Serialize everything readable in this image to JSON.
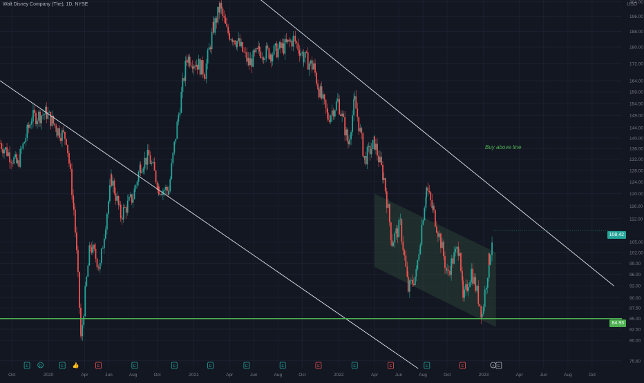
{
  "header": {
    "title": "Walt Disney Company (The), 1D, NYSE",
    "currency": "USD"
  },
  "colors": {
    "background": "#131722",
    "up": "#26a69a",
    "down": "#ef5350",
    "trendline": "#d1d4dc",
    "support": "#4caf50",
    "channel_fill": "#2e4a3a",
    "axis_text": "#787b86"
  },
  "annotation": "Buy above line",
  "price_labels": {
    "last": "108.42",
    "support": "84.93"
  },
  "chart_data": {
    "type": "candlestick",
    "title": "Walt Disney Company (The), 1D, NYSE",
    "xlabel": "",
    "ylabel": "",
    "scale": "log",
    "xlim": [
      "2019-09-01",
      "2023-12-15"
    ],
    "ylim": [
      74.0,
      205.0
    ],
    "y_ticks": [
      "75.60",
      "80.00",
      "82.50",
      "85.00",
      "87.50",
      "90.00",
      "93.00",
      "96.00",
      "99.00",
      "102.00",
      "105.00",
      "112.00",
      "116.00",
      "120.00",
      "124.00",
      "128.00",
      "132.00",
      "136.00",
      "140.00",
      "144.00",
      "149.00",
      "154.00",
      "159.00",
      "164.00",
      "172.00",
      "180.00",
      "188.00",
      "196.00",
      "204.00"
    ],
    "x_ticks": [
      {
        "label": "Oct",
        "date": "2019-10-01"
      },
      {
        "label": "2020",
        "date": "2020-01-01"
      },
      {
        "label": "Apr",
        "date": "2020-04-01"
      },
      {
        "label": "Jun",
        "date": "2020-06-01"
      },
      {
        "label": "Aug",
        "date": "2020-08-01"
      },
      {
        "label": "Oct",
        "date": "2020-10-01"
      },
      {
        "label": "2021",
        "date": "2021-01-01"
      },
      {
        "label": "Apr",
        "date": "2021-04-01"
      },
      {
        "label": "Jun",
        "date": "2021-06-01"
      },
      {
        "label": "Aug",
        "date": "2021-08-01"
      },
      {
        "label": "Oct",
        "date": "2021-10-01"
      },
      {
        "label": "2022",
        "date": "2022-01-01"
      },
      {
        "label": "Apr",
        "date": "2022-04-01"
      },
      {
        "label": "Jun",
        "date": "2022-06-01"
      },
      {
        "label": "Aug",
        "date": "2022-08-01"
      },
      {
        "label": "Oct",
        "date": "2022-10-01"
      },
      {
        "label": "2023",
        "date": "2023-01-01"
      },
      {
        "label": "Apr",
        "date": "2023-04-01"
      },
      {
        "label": "Jun",
        "date": "2023-06-01"
      },
      {
        "label": "Aug",
        "date": "2023-08-01"
      },
      {
        "label": "Oct",
        "date": "2023-10-01"
      }
    ],
    "price_path": [
      {
        "date": "2019-09-01",
        "close": 138
      },
      {
        "date": "2019-10-15",
        "close": 130
      },
      {
        "date": "2019-11-20",
        "close": 148
      },
      {
        "date": "2019-12-27",
        "close": 150
      },
      {
        "date": "2020-01-25",
        "close": 143
      },
      {
        "date": "2020-02-15",
        "close": 140
      },
      {
        "date": "2020-03-05",
        "close": 115
      },
      {
        "date": "2020-03-23",
        "close": 80
      },
      {
        "date": "2020-04-15",
        "close": 104
      },
      {
        "date": "2020-05-10",
        "close": 98
      },
      {
        "date": "2020-06-08",
        "close": 125
      },
      {
        "date": "2020-07-01",
        "close": 113
      },
      {
        "date": "2020-08-01",
        "close": 119
      },
      {
        "date": "2020-08-20",
        "close": 130
      },
      {
        "date": "2020-09-10",
        "close": 133
      },
      {
        "date": "2020-10-05",
        "close": 122
      },
      {
        "date": "2020-10-30",
        "close": 121
      },
      {
        "date": "2020-11-20",
        "close": 145
      },
      {
        "date": "2020-12-15",
        "close": 175
      },
      {
        "date": "2021-01-10",
        "close": 172
      },
      {
        "date": "2021-01-29",
        "close": 168
      },
      {
        "date": "2021-02-20",
        "close": 190
      },
      {
        "date": "2021-03-08",
        "close": 201
      },
      {
        "date": "2021-03-25",
        "close": 188
      },
      {
        "date": "2021-04-20",
        "close": 183
      },
      {
        "date": "2021-05-20",
        "close": 172
      },
      {
        "date": "2021-06-15",
        "close": 178
      },
      {
        "date": "2021-07-15",
        "close": 177
      },
      {
        "date": "2021-08-15",
        "close": 180
      },
      {
        "date": "2021-09-10",
        "close": 184
      },
      {
        "date": "2021-10-05",
        "close": 175
      },
      {
        "date": "2021-10-30",
        "close": 170
      },
      {
        "date": "2021-11-12",
        "close": 160
      },
      {
        "date": "2021-12-05",
        "close": 148
      },
      {
        "date": "2021-12-30",
        "close": 155
      },
      {
        "date": "2022-01-25",
        "close": 138
      },
      {
        "date": "2022-02-10",
        "close": 155
      },
      {
        "date": "2022-03-07",
        "close": 132
      },
      {
        "date": "2022-04-01",
        "close": 138
      },
      {
        "date": "2022-04-25",
        "close": 125
      },
      {
        "date": "2022-05-15",
        "close": 105
      },
      {
        "date": "2022-06-05",
        "close": 110
      },
      {
        "date": "2022-06-25",
        "close": 92
      },
      {
        "date": "2022-07-15",
        "close": 96
      },
      {
        "date": "2022-08-10",
        "close": 122
      },
      {
        "date": "2022-08-25",
        "close": 115
      },
      {
        "date": "2022-09-15",
        "close": 105
      },
      {
        "date": "2022-10-01",
        "close": 96
      },
      {
        "date": "2022-10-15",
        "close": 100
      },
      {
        "date": "2022-11-01",
        "close": 104
      },
      {
        "date": "2022-11-10",
        "close": 89
      },
      {
        "date": "2022-12-01",
        "close": 97
      },
      {
        "date": "2022-12-28",
        "close": 86
      },
      {
        "date": "2023-01-15",
        "close": 100
      },
      {
        "date": "2023-01-25",
        "close": 108.42
      }
    ],
    "trendlines": [
      {
        "name": "lower-falling-trendline",
        "start": {
          "date": "2019-09-01",
          "price": 164
        },
        "end": {
          "date": "2022-07-20",
          "price": 74
        }
      },
      {
        "name": "upper-falling-trendline",
        "start": {
          "date": "2020-09-25",
          "price": 260
        },
        "end": {
          "date": "2023-11-25",
          "price": 93
        }
      }
    ],
    "channel": {
      "start_date": "2022-04-01",
      "end_date": "2023-02-01",
      "upper_start": 120,
      "lower_start": 98,
      "upper_end": 102,
      "lower_end": 83
    },
    "support_level": 84.93,
    "last_price": 108.42,
    "event_markers": [
      {
        "date": "2019-11-08",
        "label": "E",
        "kind": "earnings"
      },
      {
        "date": "2019-12-12",
        "label": "D",
        "kind": "dividend"
      },
      {
        "date": "2020-02-05",
        "label": "E",
        "kind": "earnings"
      },
      {
        "date": "2020-03-10",
        "label": "👍",
        "kind": "idea"
      },
      {
        "date": "2020-05-06",
        "label": "E",
        "kind": "earnings-down"
      },
      {
        "date": "2020-08-05",
        "label": "E",
        "kind": "earnings"
      },
      {
        "date": "2020-11-13",
        "label": "E",
        "kind": "earnings"
      },
      {
        "date": "2021-02-12",
        "label": "E",
        "kind": "earnings"
      },
      {
        "date": "2021-05-14",
        "label": "E",
        "kind": "earnings"
      },
      {
        "date": "2021-08-13",
        "label": "E",
        "kind": "earnings"
      },
      {
        "date": "2021-11-11",
        "label": "E",
        "kind": "earnings-down"
      },
      {
        "date": "2022-02-10",
        "label": "E",
        "kind": "earnings"
      },
      {
        "date": "2022-05-12",
        "label": "E",
        "kind": "earnings-down"
      },
      {
        "date": "2022-08-11",
        "label": "E",
        "kind": "earnings"
      },
      {
        "date": "2022-11-09",
        "label": "E",
        "kind": "earnings-down"
      },
      {
        "date": "2023-01-25",
        "label": "⚡",
        "kind": "news"
      },
      {
        "date": "2023-02-08",
        "label": "E",
        "kind": "upcoming"
      }
    ]
  }
}
